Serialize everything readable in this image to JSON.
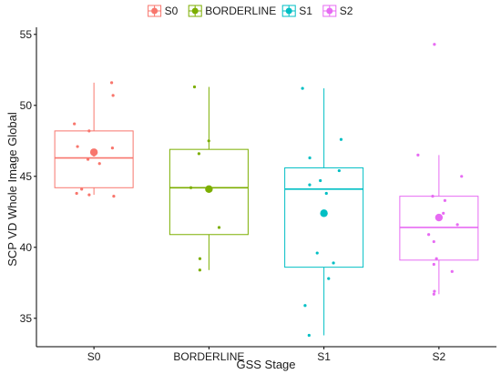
{
  "chart_data": {
    "type": "boxplot",
    "xlabel": "GSS Stage",
    "ylabel": "SCP VD Whole Image Global",
    "ylim": [
      33,
      55.5
    ],
    "yticks": [
      35,
      40,
      45,
      50,
      55
    ],
    "legend": {
      "position": "top",
      "entries": [
        "S0",
        "BORDERLINE",
        "S1",
        "S2"
      ]
    },
    "grid": false,
    "categories": [
      "S0",
      "BORDERLINE",
      "S1",
      "S2"
    ],
    "series": [
      {
        "name": "S0",
        "color": "#F8766D",
        "whisker_low": 43.7,
        "q1": 44.2,
        "median": 46.3,
        "q3": 48.2,
        "whisker_high": 51.6,
        "mean": 46.7,
        "points": [
          51.6,
          50.7,
          48.7,
          48.2,
          47.0,
          47.1,
          46.2,
          46.5,
          45.9,
          44.1,
          43.8,
          43.6,
          43.7
        ]
      },
      {
        "name": "BORDERLINE",
        "color": "#7CAE00",
        "whisker_low": 38.4,
        "q1": 40.9,
        "median": 44.2,
        "q3": 46.9,
        "whisker_high": 51.3,
        "mean": 44.1,
        "points": [
          51.3,
          47.5,
          46.6,
          44.2,
          41.4,
          39.2,
          38.4
        ]
      },
      {
        "name": "S1",
        "color": "#00BFC4",
        "whisker_low": 33.8,
        "q1": 38.6,
        "median": 44.1,
        "q3": 45.6,
        "whisker_high": 51.2,
        "mean": 42.4,
        "points": [
          51.2,
          47.6,
          46.3,
          45.4,
          44.7,
          44.4,
          43.8,
          39.6,
          38.9,
          37.8,
          35.9,
          33.8
        ]
      },
      {
        "name": "S2",
        "color": "#E76BF3",
        "whisker_low": 36.7,
        "q1": 39.1,
        "median": 41.4,
        "q3": 43.6,
        "whisker_high": 46.5,
        "mean": 42.1,
        "points": [
          54.3,
          46.5,
          45.0,
          43.6,
          43.3,
          42.4,
          41.6,
          40.9,
          40.4,
          39.2,
          38.8,
          38.3,
          36.9,
          36.7
        ]
      }
    ]
  }
}
